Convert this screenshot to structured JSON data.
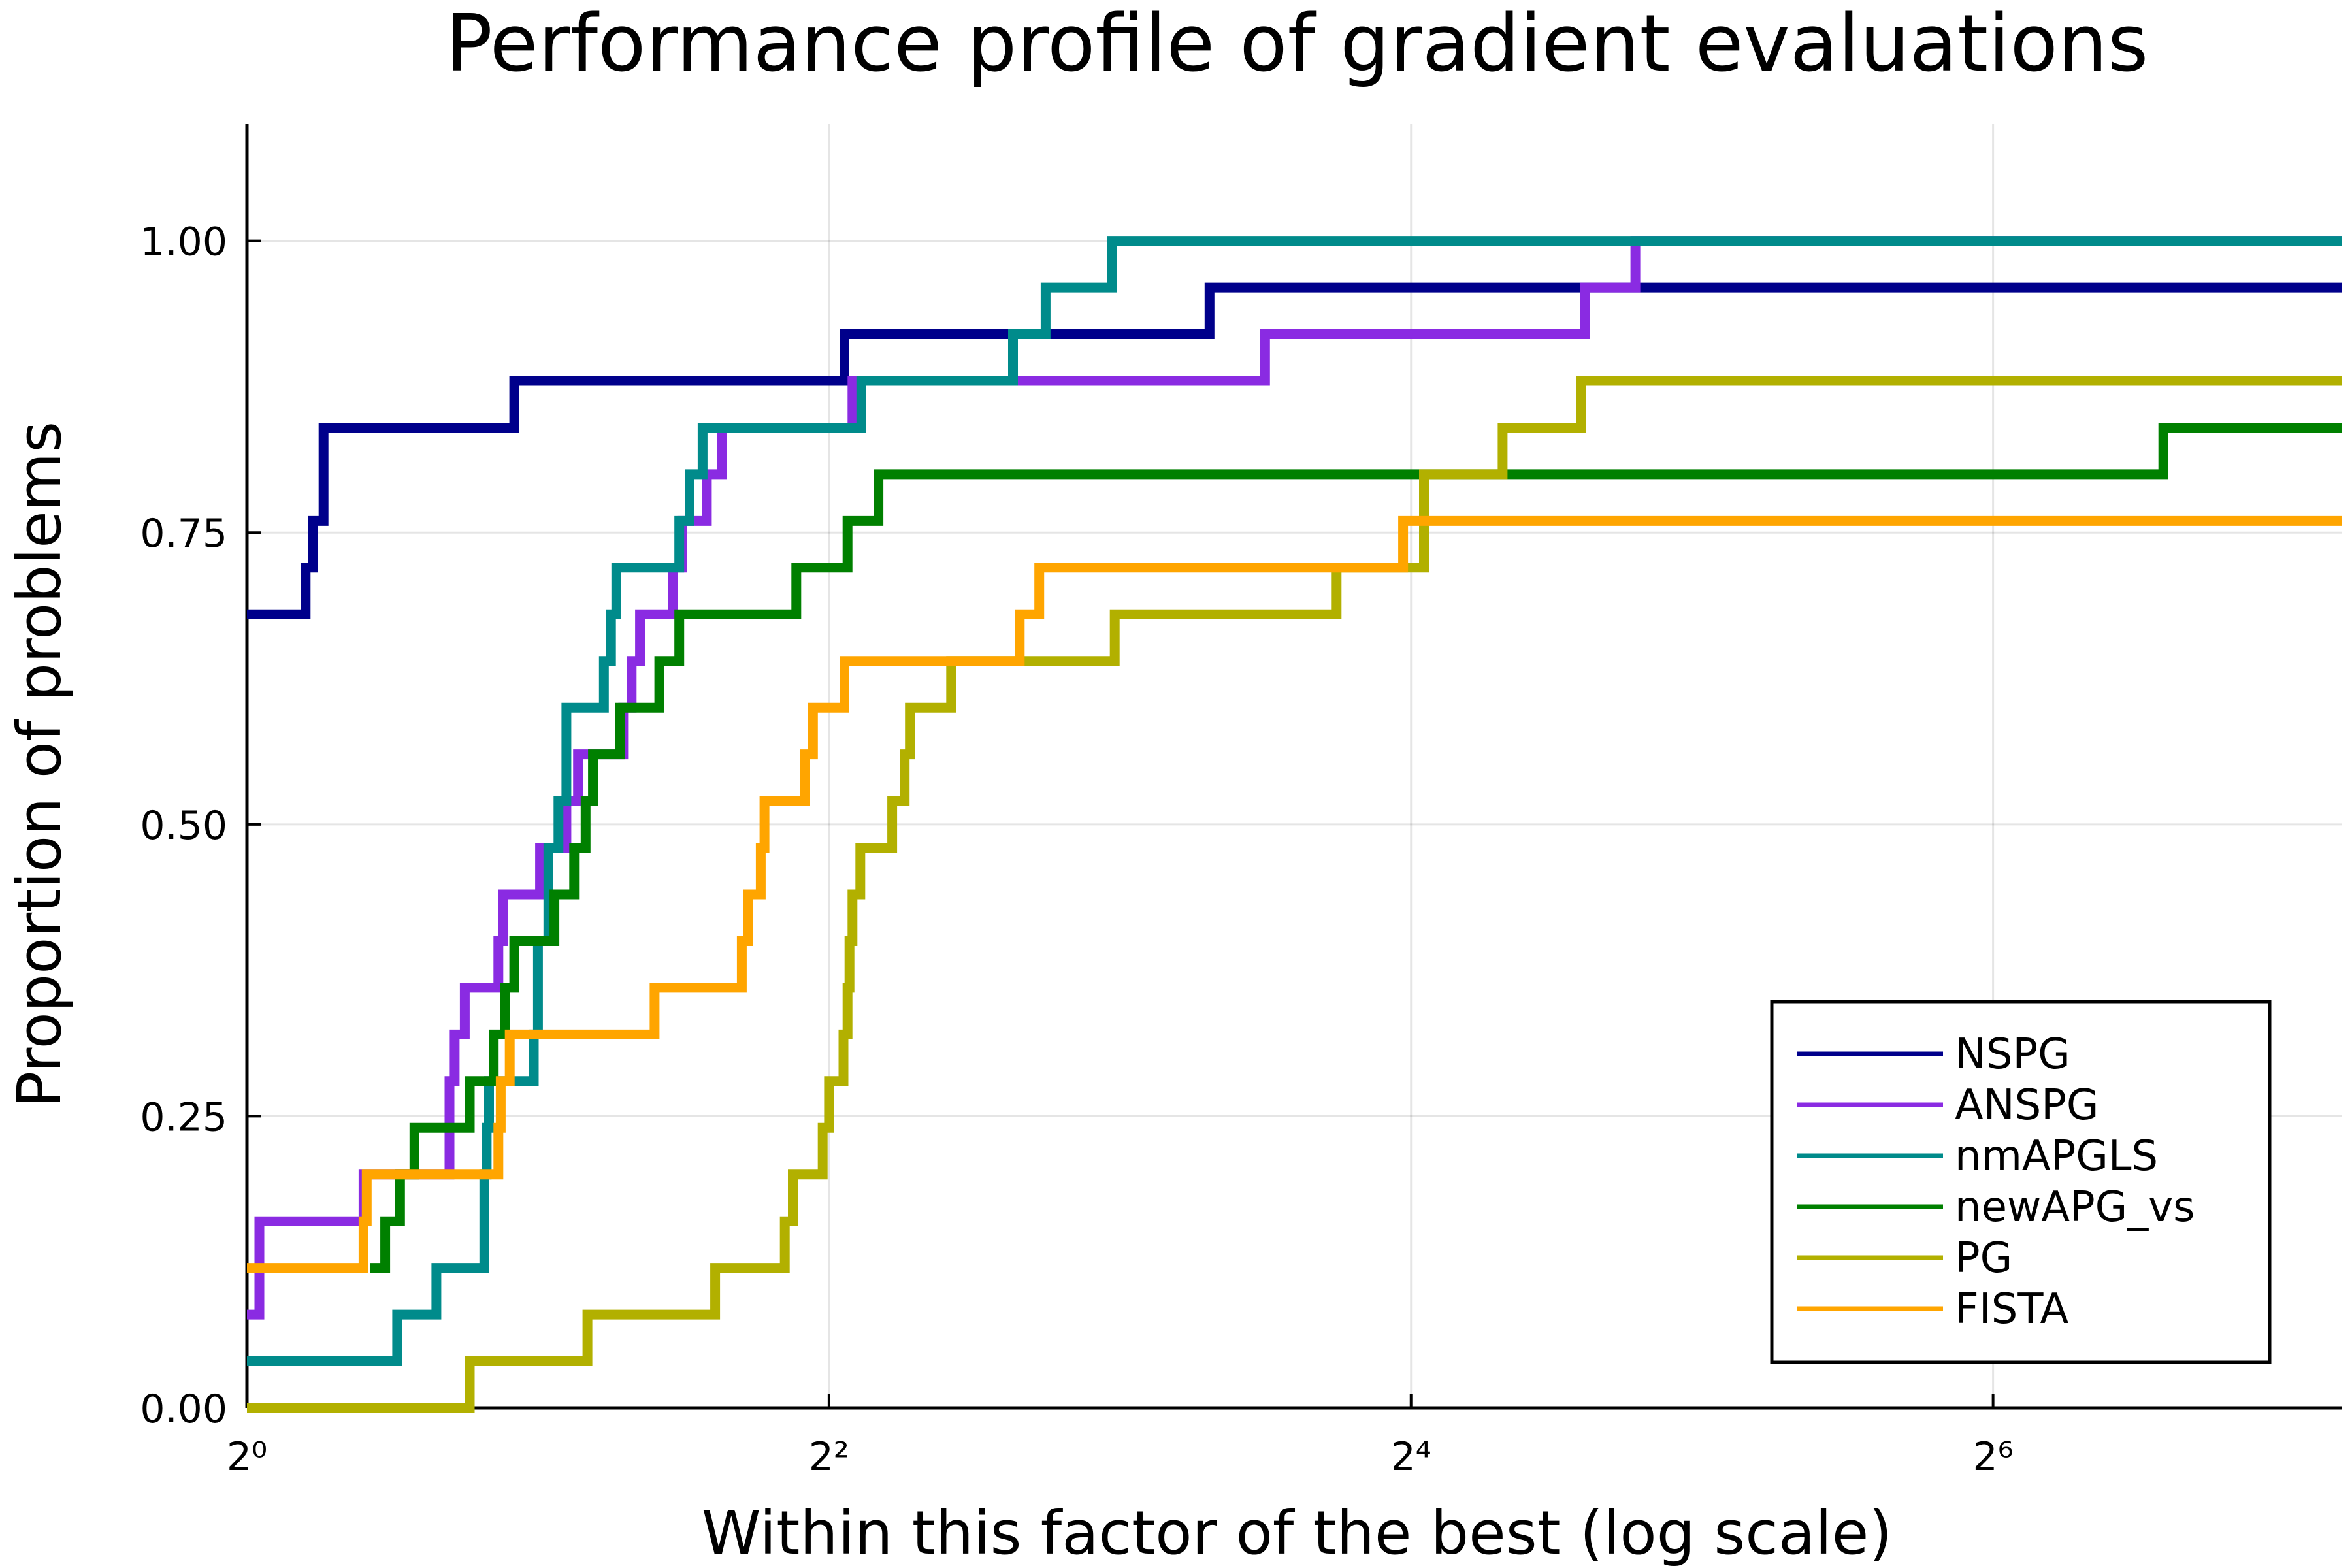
{
  "chart_data": {
    "type": "line",
    "step": true,
    "title": "Performance profile of gradient evaluations",
    "xlabel": "Within this factor of the best (log scale)",
    "ylabel": "Proportion of problems",
    "xscale": "log2",
    "xlim": [
      1,
      147
    ],
    "ylim": [
      0,
      1.1
    ],
    "xticks": [
      1,
      4,
      16,
      64
    ],
    "xtick_labels": [
      "2⁰",
      "2²",
      "2⁴",
      "2⁶"
    ],
    "yticks": [
      0,
      0.25,
      0.5,
      0.75,
      1.0
    ],
    "ytick_labels": [
      "0.00",
      "0.25",
      "0.50",
      "0.75",
      "1.00"
    ],
    "grid": true,
    "legend_position": "bottom-right",
    "series": [
      {
        "name": "NSPG",
        "color": "#00008B",
        "points": [
          [
            1,
            0.68
          ],
          [
            1.15,
            0.72
          ],
          [
            1.17,
            0.76
          ],
          [
            1.2,
            0.84
          ],
          [
            1.89,
            0.88
          ],
          [
            4.15,
            0.92
          ],
          [
            9.9,
            0.96
          ],
          [
            147,
            0.96
          ]
        ]
      },
      {
        "name": "ANSPG",
        "color": "#8A2BE2",
        "points": [
          [
            1,
            0.08
          ],
          [
            1.03,
            0.16
          ],
          [
            1.32,
            0.2
          ],
          [
            1.62,
            0.28
          ],
          [
            1.64,
            0.32
          ],
          [
            1.68,
            0.36
          ],
          [
            1.82,
            0.4
          ],
          [
            1.84,
            0.44
          ],
          [
            2.01,
            0.48
          ],
          [
            2.14,
            0.52
          ],
          [
            2.2,
            0.56
          ],
          [
            2.45,
            0.6
          ],
          [
            2.5,
            0.64
          ],
          [
            2.55,
            0.68
          ],
          [
            2.76,
            0.72
          ],
          [
            2.82,
            0.76
          ],
          [
            2.99,
            0.8
          ],
          [
            3.1,
            0.84
          ],
          [
            4.23,
            0.88
          ],
          [
            6.15,
            0.88
          ],
          [
            11.3,
            0.92
          ],
          [
            24.2,
            0.96
          ],
          [
            27.3,
            1.0
          ],
          [
            147,
            1.0
          ]
        ]
      },
      {
        "name": "nmAPGLS",
        "color": "#008B8B",
        "points": [
          [
            1,
            0.04
          ],
          [
            1.43,
            0.08
          ],
          [
            1.57,
            0.12
          ],
          [
            1.76,
            0.2
          ],
          [
            1.77,
            0.24
          ],
          [
            1.78,
            0.28
          ],
          [
            1.98,
            0.32
          ],
          [
            2.0,
            0.4
          ],
          [
            2.05,
            0.48
          ],
          [
            2.1,
            0.52
          ],
          [
            2.14,
            0.6
          ],
          [
            2.34,
            0.64
          ],
          [
            2.38,
            0.68
          ],
          [
            2.41,
            0.72
          ],
          [
            2.8,
            0.76
          ],
          [
            2.87,
            0.8
          ],
          [
            2.96,
            0.84
          ],
          [
            4.32,
            0.88
          ],
          [
            6.2,
            0.92
          ],
          [
            6.7,
            0.96
          ],
          [
            7.85,
            1.0
          ],
          [
            147,
            1.0
          ]
        ]
      },
      {
        "name": "newAPG_vs",
        "color": "#008000",
        "points": [
          [
            1.34,
            0.12
          ],
          [
            1.39,
            0.16
          ],
          [
            1.44,
            0.2
          ],
          [
            1.49,
            0.24
          ],
          [
            1.7,
            0.28
          ],
          [
            1.8,
            0.32
          ],
          [
            1.85,
            0.36
          ],
          [
            1.89,
            0.4
          ],
          [
            2.08,
            0.44
          ],
          [
            2.18,
            0.48
          ],
          [
            2.24,
            0.52
          ],
          [
            2.28,
            0.56
          ],
          [
            2.43,
            0.6
          ],
          [
            2.67,
            0.64
          ],
          [
            2.8,
            0.68
          ],
          [
            3.7,
            0.72
          ],
          [
            4.18,
            0.76
          ],
          [
            4.5,
            0.8
          ],
          [
            96,
            0.84
          ],
          [
            147,
            0.84
          ]
        ]
      },
      {
        "name": "PG",
        "color": "#B2B000",
        "points": [
          [
            1,
            0.0
          ],
          [
            1.7,
            0.04
          ],
          [
            2.25,
            0.08
          ],
          [
            3.05,
            0.12
          ],
          [
            3.6,
            0.16
          ],
          [
            3.67,
            0.2
          ],
          [
            3.94,
            0.24
          ],
          [
            4.0,
            0.28
          ],
          [
            4.14,
            0.32
          ],
          [
            4.18,
            0.36
          ],
          [
            4.2,
            0.4
          ],
          [
            4.23,
            0.44
          ],
          [
            4.31,
            0.48
          ],
          [
            4.65,
            0.52
          ],
          [
            4.79,
            0.56
          ],
          [
            4.85,
            0.6
          ],
          [
            5.35,
            0.64
          ],
          [
            7.9,
            0.68
          ],
          [
            13.4,
            0.72
          ],
          [
            16.5,
            0.8
          ],
          [
            19.9,
            0.84
          ],
          [
            24.0,
            0.88
          ],
          [
            147,
            0.88
          ]
        ]
      },
      {
        "name": "FISTA",
        "color": "#FFA500",
        "points": [
          [
            1,
            0.12
          ],
          [
            1.32,
            0.16
          ],
          [
            1.33,
            0.2
          ],
          [
            1.82,
            0.24
          ],
          [
            1.83,
            0.28
          ],
          [
            1.87,
            0.32
          ],
          [
            2.64,
            0.36
          ],
          [
            3.25,
            0.4
          ],
          [
            3.3,
            0.44
          ],
          [
            3.4,
            0.48
          ],
          [
            3.43,
            0.52
          ],
          [
            3.78,
            0.56
          ],
          [
            3.85,
            0.6
          ],
          [
            4.15,
            0.64
          ],
          [
            6.3,
            0.68
          ],
          [
            6.6,
            0.72
          ],
          [
            15.7,
            0.76
          ],
          [
            147,
            0.76
          ]
        ]
      }
    ]
  }
}
